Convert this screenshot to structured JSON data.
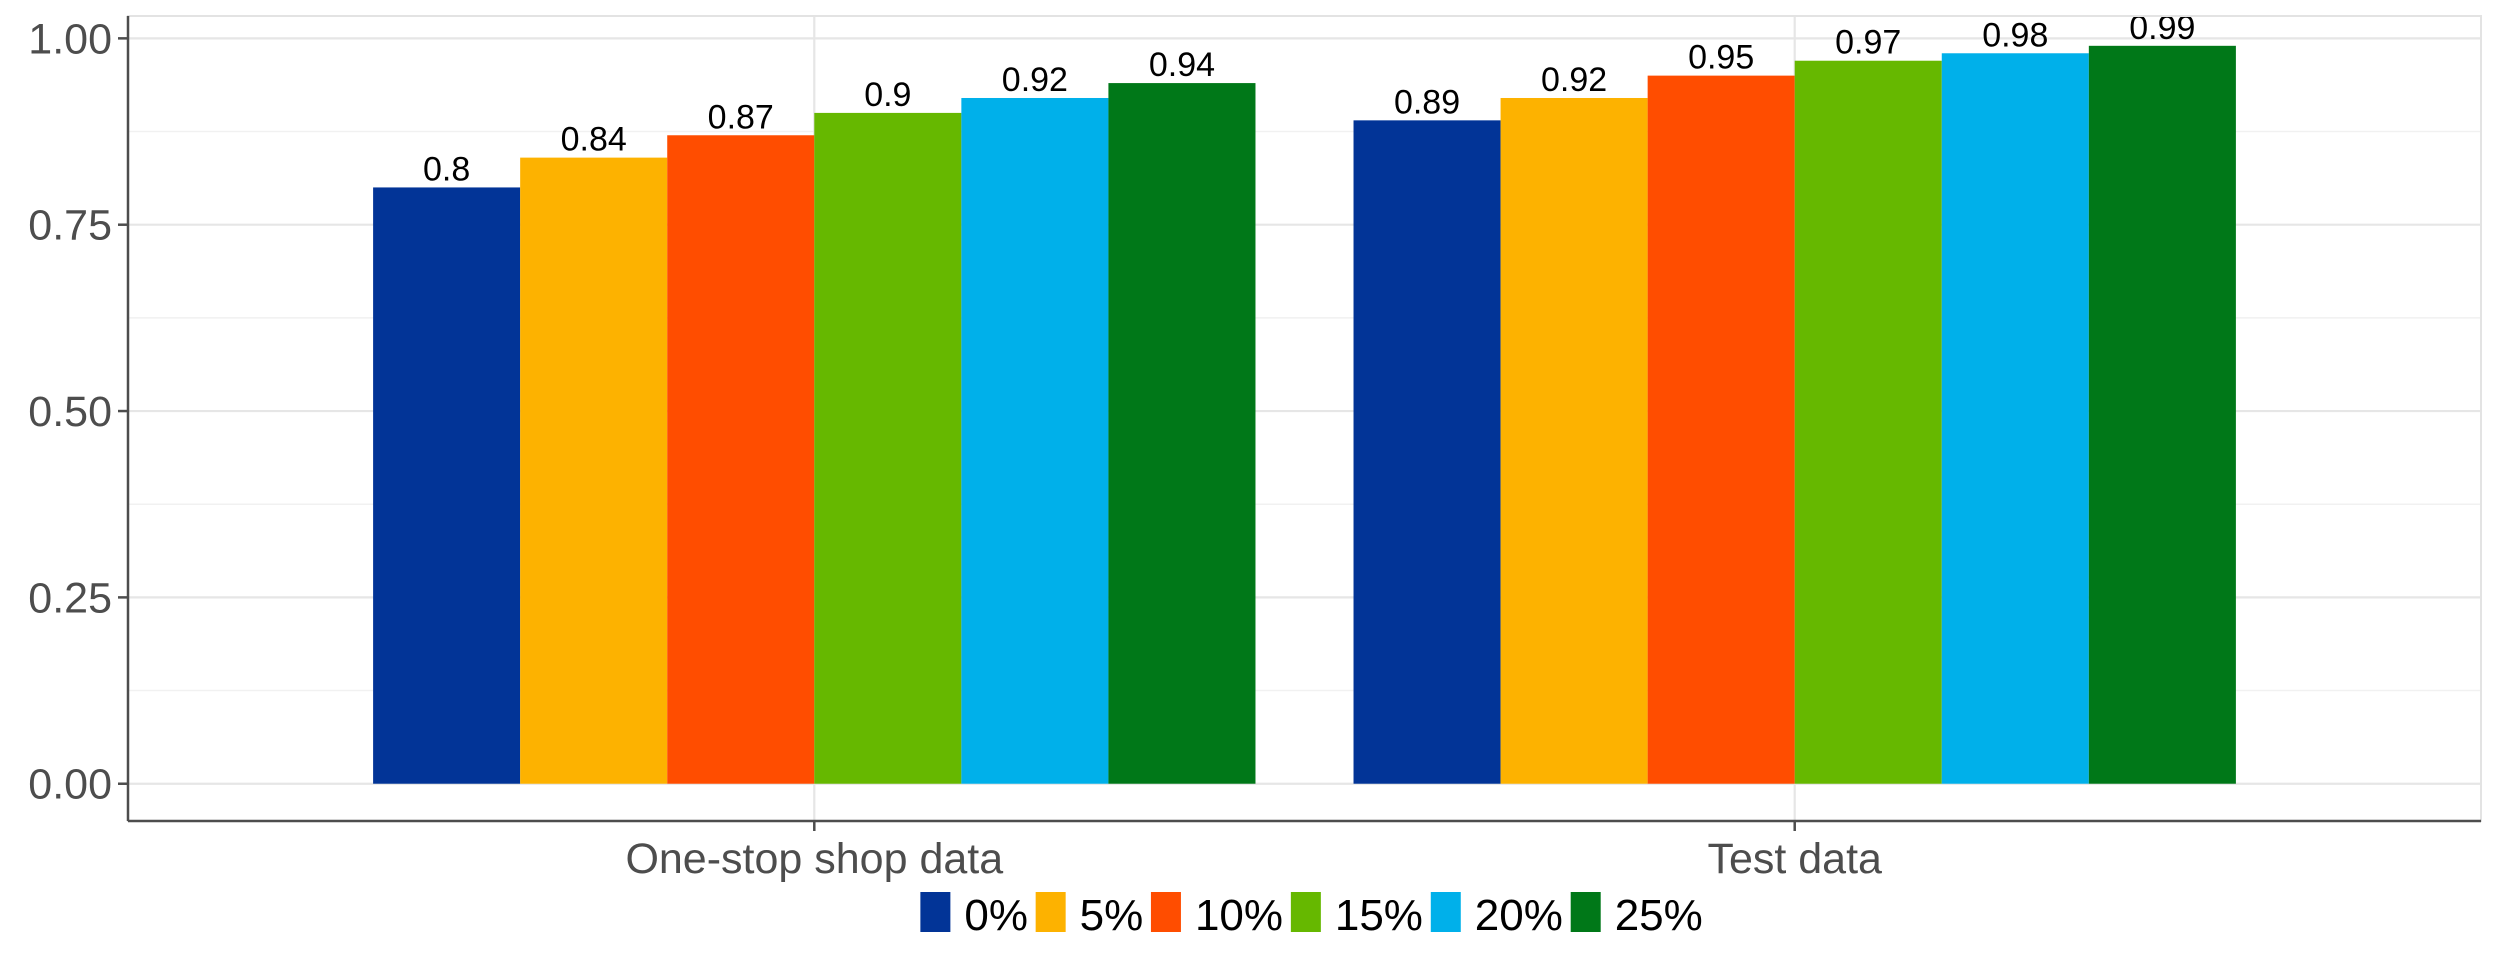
{
  "chart_data": {
    "type": "bar",
    "categories": [
      "One-stop shop data",
      "Test data"
    ],
    "series": [
      {
        "name": "0%",
        "color": "#023497",
        "values": [
          0.8,
          0.89
        ]
      },
      {
        "name": "5%",
        "color": "#FDB200",
        "values": [
          0.84,
          0.92
        ]
      },
      {
        "name": "10%",
        "color": "#FF4D00",
        "values": [
          0.87,
          0.95
        ]
      },
      {
        "name": "15%",
        "color": "#66B800",
        "values": [
          0.9,
          0.97
        ]
      },
      {
        "name": "20%",
        "color": "#00B0EA",
        "values": [
          0.92,
          0.98
        ]
      },
      {
        "name": "25%",
        "color": "#007818",
        "values": [
          0.94,
          0.99
        ]
      }
    ],
    "ylim": [
      -0.05,
      1.03
    ],
    "yticks": [
      0.0,
      0.25,
      0.5,
      0.75,
      1.0
    ],
    "ytick_labels": [
      "0.00",
      "0.25",
      "0.50",
      "0.75",
      "1.00"
    ],
    "xlabel": "",
    "ylabel": "",
    "grid": true,
    "legend_position": "bottom"
  }
}
